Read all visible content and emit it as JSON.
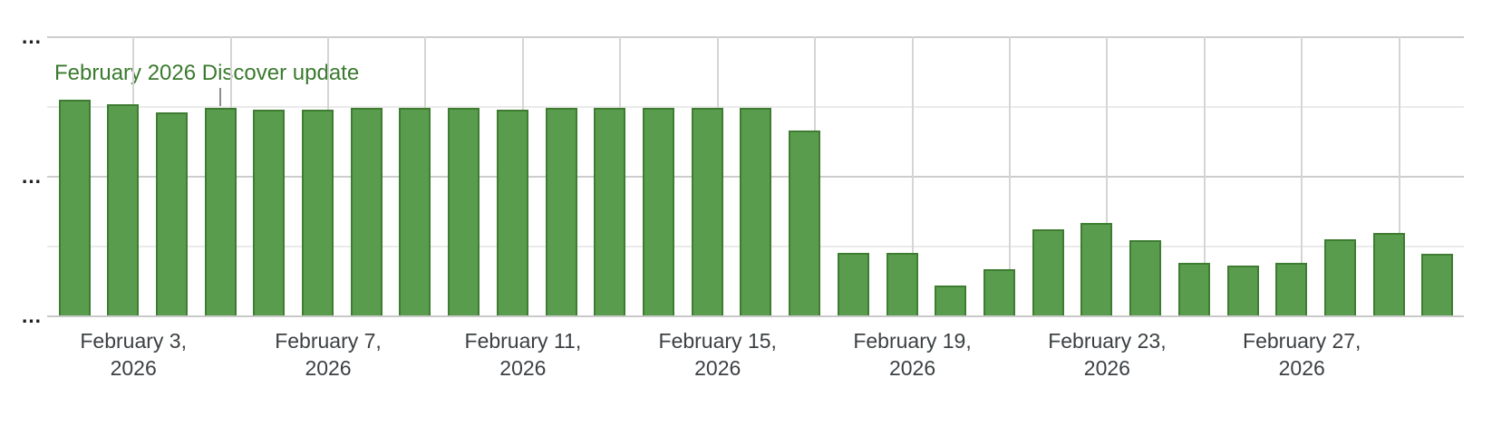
{
  "colors": {
    "background": "#ffffff",
    "bar_fill": "#5a9c4e",
    "bar_border": "#3e7d31",
    "annotation_text": "#3a7a2e",
    "annotation_marker": "#8c8c8c",
    "axis_label": "#3c4043",
    "y_label": "#1f1f1f",
    "gridline_major": "#cdcdcd",
    "gridline_minor": "#eaeaea",
    "gridline_vertical": "#d5d5d5",
    "axis_line": "#c9c9c9"
  },
  "chart_data": {
    "type": "bar",
    "dates": [
      "February 2, 2026",
      "February 3, 2026",
      "February 4, 2026",
      "February 5, 2026",
      "February 6, 2026",
      "February 7, 2026",
      "February 8, 2026",
      "February 9, 2026",
      "February 10, 2026",
      "February 11, 2026",
      "February 12, 2026",
      "February 13, 2026",
      "February 14, 2026",
      "February 15, 2026",
      "February 16, 2026",
      "February 17, 2026",
      "February 18, 2026",
      "February 19, 2026",
      "February 20, 2026",
      "February 21, 2026",
      "February 22, 2026",
      "February 23, 2026",
      "February 24, 2026",
      "February 25, 2026",
      "February 26, 2026",
      "February 27, 2026",
      "February 28, 2026",
      "March 1, 2026",
      "March 2, 2026"
    ],
    "values_pct_of_ymax": [
      77.4,
      75.8,
      72.6,
      74.2,
      73.8,
      73.8,
      74.2,
      74.2,
      74.2,
      73.6,
      74.2,
      74.2,
      74.2,
      74.2,
      74.2,
      66.1,
      22.4,
      22.4,
      10.8,
      16.7,
      31.0,
      33.1,
      27.1,
      18.7,
      17.9,
      18.7,
      27.4,
      29.7,
      22.0
    ],
    "y_axis": {
      "tick_labels": [
        "…",
        "…",
        "…"
      ]
    },
    "x_axis": {
      "tick_labels": [
        {
          "line1": "February 3,",
          "line2": "2026"
        },
        {
          "line1": "February 7,",
          "line2": "2026"
        },
        {
          "line1": "February 11,",
          "line2": "2026"
        },
        {
          "line1": "February 15,",
          "line2": "2026"
        },
        {
          "line1": "February 19,",
          "line2": "2026"
        },
        {
          "line1": "February 23,",
          "line2": "2026"
        },
        {
          "line1": "February 27,",
          "line2": "2026"
        }
      ]
    },
    "annotation": {
      "text": "February 2026 Discover update",
      "anchor_date": "February 5, 2026",
      "anchor_index": 3
    },
    "grid": "on",
    "legend": "none"
  }
}
